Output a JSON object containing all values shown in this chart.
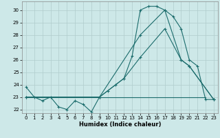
{
  "background_color": "#cde8e8",
  "grid_color": "#b0cccc",
  "line_color": "#1a6b6b",
  "x_label": "Humidex (Indice chaleur)",
  "xlim": [
    -0.5,
    23.5
  ],
  "ylim": [
    21.7,
    30.7
  ],
  "yticks": [
    22,
    23,
    24,
    25,
    26,
    27,
    28,
    29,
    30
  ],
  "xticks": [
    0,
    1,
    2,
    3,
    4,
    5,
    6,
    7,
    8,
    9,
    10,
    11,
    12,
    13,
    14,
    15,
    16,
    17,
    18,
    19,
    20,
    21,
    22,
    23
  ],
  "series1_x": [
    0,
    1,
    2,
    3,
    4,
    5,
    6,
    7,
    8,
    9,
    10,
    11,
    12,
    13,
    14,
    15,
    16,
    17,
    18,
    19,
    20,
    21,
    22,
    23
  ],
  "series1_y": [
    23.8,
    23.0,
    22.7,
    23.0,
    22.2,
    22.0,
    22.7,
    22.4,
    21.8,
    23.0,
    23.5,
    24.0,
    24.5,
    26.3,
    30.0,
    30.3,
    30.3,
    30.0,
    29.5,
    28.5,
    26.0,
    25.5,
    22.8,
    22.8
  ],
  "series2_x": [
    0,
    9,
    12,
    14,
    17,
    19,
    20,
    23
  ],
  "series2_y": [
    23.0,
    23.0,
    24.5,
    26.2,
    28.5,
    26.0,
    25.5,
    22.8
  ],
  "series3_x": [
    0,
    9,
    14,
    17,
    19,
    20,
    23
  ],
  "series3_y": [
    23.0,
    23.0,
    28.0,
    30.0,
    26.0,
    25.5,
    22.8
  ],
  "series4_x": [
    0,
    22
  ],
  "series4_y": [
    23.0,
    23.0
  ]
}
